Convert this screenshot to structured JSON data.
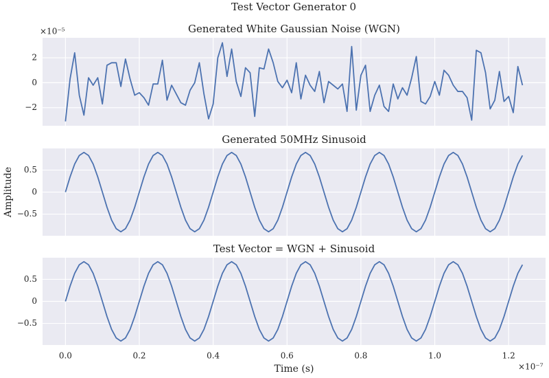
{
  "title": "Test Vector Generator 0",
  "chart_data": [
    {
      "type": "line",
      "title": "Generated White Gaussian Noise (WGN)",
      "color": "#4c72b0",
      "grid": true,
      "show_xticklabels": false,
      "y_offset_label": "×10⁻⁵",
      "x": [
        0,
        0.0125,
        0.025,
        0.0375,
        0.05,
        0.0625,
        0.075,
        0.0875,
        0.1,
        0.1125,
        0.125,
        0.1375,
        0.15,
        0.1625,
        0.175,
        0.1875,
        0.2,
        0.2125,
        0.225,
        0.2375,
        0.25,
        0.2625,
        0.275,
        0.2875,
        0.3,
        0.3125,
        0.325,
        0.3375,
        0.35,
        0.3625,
        0.375,
        0.3875,
        0.4,
        0.4125,
        0.425,
        0.4375,
        0.45,
        0.4625,
        0.475,
        0.4875,
        0.5,
        0.5125,
        0.525,
        0.5375,
        0.55,
        0.5625,
        0.575,
        0.5875,
        0.6,
        0.6125,
        0.625,
        0.6375,
        0.65,
        0.6625,
        0.675,
        0.6875,
        0.7,
        0.7125,
        0.725,
        0.7375,
        0.75,
        0.7625,
        0.775,
        0.7875,
        0.8,
        0.8125,
        0.825,
        0.8375,
        0.85,
        0.8625,
        0.875,
        0.8875,
        0.9,
        0.9125,
        0.925,
        0.9375,
        0.95,
        0.9625,
        0.975,
        0.9875,
        1.0,
        1.0125,
        1.025,
        1.0375,
        1.05,
        1.0625,
        1.075,
        1.0875,
        1.1,
        1.1125,
        1.125,
        1.1375,
        1.15,
        1.1625,
        1.175,
        1.1875,
        1.2,
        1.2125,
        1.225,
        1.2375
      ],
      "values": [
        -3.1,
        0.3,
        2.4,
        -1.0,
        -2.6,
        0.4,
        -0.2,
        0.4,
        -1.7,
        1.4,
        1.6,
        1.6,
        -0.3,
        1.9,
        0.3,
        -1.0,
        -0.8,
        -1.2,
        -1.8,
        -0.1,
        -0.1,
        1.8,
        -1.4,
        -0.2,
        -0.9,
        -1.6,
        -1.8,
        -0.6,
        0,
        1.6,
        -0.9,
        -2.9,
        -1.7,
        2.0,
        3.2,
        0.5,
        2.7,
        0.1,
        -1.1,
        1.2,
        0.8,
        -2.7,
        1.2,
        1.1,
        2.7,
        1.6,
        0.1,
        -0.4,
        0.2,
        -0.8,
        1.6,
        -1.3,
        0.6,
        -0.2,
        -0.7,
        0.9,
        -1.6,
        0.1,
        -0.2,
        -0.5,
        -0.1,
        -2.3,
        2.9,
        -2.2,
        0.6,
        1.4,
        -2.3,
        -1.0,
        -0.2,
        -1.9,
        -2.3,
        -0.1,
        -1.3,
        -0.4,
        -1.0,
        0.4,
        2.1,
        -1.5,
        -1.7,
        -1.1,
        0.1,
        -1.0,
        1.0,
        0.6,
        -0.2,
        -0.7,
        -0.7,
        -1.2,
        -3.0,
        2.6,
        2.4,
        0.8,
        -2.1,
        -1.4,
        0.9,
        -1.5,
        -1.1,
        -2.4,
        1.3,
        -0.2
      ],
      "xlim": [
        -0.062,
        1.3
      ],
      "xticks": [
        {
          "value": 0,
          "label": "0.0"
        },
        0.2,
        0.4,
        0.6,
        0.8,
        {
          "value": 1,
          "label": "1.0"
        },
        1.2
      ],
      "ylim": [
        -3.45,
        3.6
      ],
      "yticks": [
        {
          "value": -2,
          "label": "−2"
        },
        0,
        2
      ]
    },
    {
      "type": "line",
      "title": "Generated 50MHz Sinusoid",
      "ylabel": "Amplitude",
      "color": "#4c72b0",
      "grid": true,
      "show_xticklabels": false,
      "x": [
        0,
        0.0125,
        0.025,
        0.0375,
        0.05,
        0.0625,
        0.075,
        0.0875,
        0.1,
        0.1125,
        0.125,
        0.1375,
        0.15,
        0.1625,
        0.175,
        0.1875,
        0.2,
        0.2125,
        0.225,
        0.2375,
        0.25,
        0.2625,
        0.275,
        0.2875,
        0.3,
        0.3125,
        0.325,
        0.3375,
        0.35,
        0.3625,
        0.375,
        0.3875,
        0.4,
        0.4125,
        0.425,
        0.4375,
        0.45,
        0.4625,
        0.475,
        0.4875,
        0.5,
        0.5125,
        0.525,
        0.5375,
        0.55,
        0.5625,
        0.575,
        0.5875,
        0.6,
        0.6125,
        0.625,
        0.6375,
        0.65,
        0.6625,
        0.675,
        0.6875,
        0.7,
        0.7125,
        0.725,
        0.7375,
        0.75,
        0.7625,
        0.775,
        0.7875,
        0.8,
        0.8125,
        0.825,
        0.8375,
        0.85,
        0.8625,
        0.875,
        0.8875,
        0.9,
        0.9125,
        0.925,
        0.9375,
        0.95,
        0.9625,
        0.975,
        0.9875,
        1.0,
        1.0125,
        1.025,
        1.0375,
        1.05,
        1.0625,
        1.075,
        1.0875,
        1.1,
        1.1125,
        1.125,
        1.1375,
        1.15,
        1.1625,
        1.175,
        1.1875,
        1.2,
        1.2125,
        1.225,
        1.2375
      ],
      "values": [
        0,
        0.344,
        0.636,
        0.831,
        0.9,
        0.831,
        0.636,
        0.344,
        0,
        -0.344,
        -0.636,
        -0.831,
        -0.9,
        -0.831,
        -0.636,
        -0.344,
        0,
        0.344,
        0.636,
        0.831,
        0.9,
        0.831,
        0.636,
        0.344,
        0,
        -0.344,
        -0.636,
        -0.831,
        -0.9,
        -0.831,
        -0.636,
        -0.344,
        0,
        0.344,
        0.636,
        0.831,
        0.9,
        0.831,
        0.636,
        0.344,
        0,
        -0.344,
        -0.636,
        -0.831,
        -0.9,
        -0.831,
        -0.636,
        -0.344,
        0,
        0.344,
        0.636,
        0.831,
        0.9,
        0.831,
        0.636,
        0.344,
        0,
        -0.344,
        -0.636,
        -0.831,
        -0.9,
        -0.831,
        -0.636,
        -0.344,
        0,
        0.344,
        0.636,
        0.831,
        0.9,
        0.831,
        0.636,
        0.344,
        0,
        -0.344,
        -0.636,
        -0.831,
        -0.9,
        -0.831,
        -0.636,
        -0.344,
        0,
        0.344,
        0.636,
        0.831,
        0.9,
        0.831,
        0.636,
        0.344,
        0,
        -0.344,
        -0.636,
        -0.831,
        -0.9,
        -0.831,
        -0.636,
        -0.344,
        0,
        0.344,
        0.636,
        0.831
      ],
      "xlim": [
        -0.062,
        1.3
      ],
      "xticks": [
        {
          "value": 0,
          "label": "0.0"
        },
        0.2,
        0.4,
        0.6,
        0.8,
        {
          "value": 1,
          "label": "1.0"
        },
        1.2
      ],
      "ylim": [
        -0.99,
        0.99
      ],
      "yticks": [
        {
          "value": -0.5,
          "label": "−0.5"
        },
        0,
        0.5
      ]
    },
    {
      "type": "line",
      "title": "Test Vector = WGN + Sinusoid",
      "xlabel": "Time (s)",
      "x_offset_label": "×10⁻⁷",
      "color": "#4c72b0",
      "grid": true,
      "show_xticklabels": true,
      "x": [
        0,
        0.0125,
        0.025,
        0.0375,
        0.05,
        0.0625,
        0.075,
        0.0875,
        0.1,
        0.1125,
        0.125,
        0.1375,
        0.15,
        0.1625,
        0.175,
        0.1875,
        0.2,
        0.2125,
        0.225,
        0.2375,
        0.25,
        0.2625,
        0.275,
        0.2875,
        0.3,
        0.3125,
        0.325,
        0.3375,
        0.35,
        0.3625,
        0.375,
        0.3875,
        0.4,
        0.4125,
        0.425,
        0.4375,
        0.45,
        0.4625,
        0.475,
        0.4875,
        0.5,
        0.5125,
        0.525,
        0.5375,
        0.55,
        0.5625,
        0.575,
        0.5875,
        0.6,
        0.6125,
        0.625,
        0.6375,
        0.65,
        0.6625,
        0.675,
        0.6875,
        0.7,
        0.7125,
        0.725,
        0.7375,
        0.75,
        0.7625,
        0.775,
        0.7875,
        0.8,
        0.8125,
        0.825,
        0.8375,
        0.85,
        0.8625,
        0.875,
        0.8875,
        0.9,
        0.9125,
        0.925,
        0.9375,
        0.95,
        0.9625,
        0.975,
        0.9875,
        1.0,
        1.0125,
        1.025,
        1.0375,
        1.05,
        1.0625,
        1.075,
        1.0875,
        1.1,
        1.1125,
        1.125,
        1.1375,
        1.15,
        1.1625,
        1.175,
        1.1875,
        1.2,
        1.2125,
        1.225,
        1.2375
      ],
      "values": [
        0,
        0.344,
        0.636,
        0.831,
        0.9,
        0.831,
        0.636,
        0.344,
        0,
        -0.344,
        -0.636,
        -0.831,
        -0.9,
        -0.831,
        -0.636,
        -0.344,
        0,
        0.344,
        0.636,
        0.831,
        0.9,
        0.831,
        0.636,
        0.344,
        0,
        -0.344,
        -0.636,
        -0.831,
        -0.9,
        -0.831,
        -0.636,
        -0.344,
        0,
        0.344,
        0.636,
        0.831,
        0.9,
        0.831,
        0.636,
        0.344,
        0,
        -0.344,
        -0.636,
        -0.831,
        -0.9,
        -0.831,
        -0.636,
        -0.344,
        0,
        0.344,
        0.636,
        0.831,
        0.9,
        0.831,
        0.636,
        0.344,
        0,
        -0.344,
        -0.636,
        -0.831,
        -0.9,
        -0.831,
        -0.636,
        -0.344,
        0,
        0.344,
        0.636,
        0.831,
        0.9,
        0.831,
        0.636,
        0.344,
        0,
        -0.344,
        -0.636,
        -0.831,
        -0.9,
        -0.831,
        -0.636,
        -0.344,
        0,
        0.344,
        0.636,
        0.831,
        0.9,
        0.831,
        0.636,
        0.344,
        0,
        -0.344,
        -0.636,
        -0.831,
        -0.9,
        -0.831,
        -0.636,
        -0.344,
        0,
        0.344,
        0.636,
        0.831
      ],
      "xlim": [
        -0.062,
        1.3
      ],
      "xticks": [
        {
          "value": 0,
          "label": "0.0"
        },
        0.2,
        0.4,
        0.6,
        0.8,
        {
          "value": 1,
          "label": "1.0"
        },
        1.2
      ],
      "ylim": [
        -0.99,
        0.99
      ],
      "yticks": [
        {
          "value": -0.5,
          "label": "−0.5"
        },
        0,
        0.5
      ]
    }
  ]
}
